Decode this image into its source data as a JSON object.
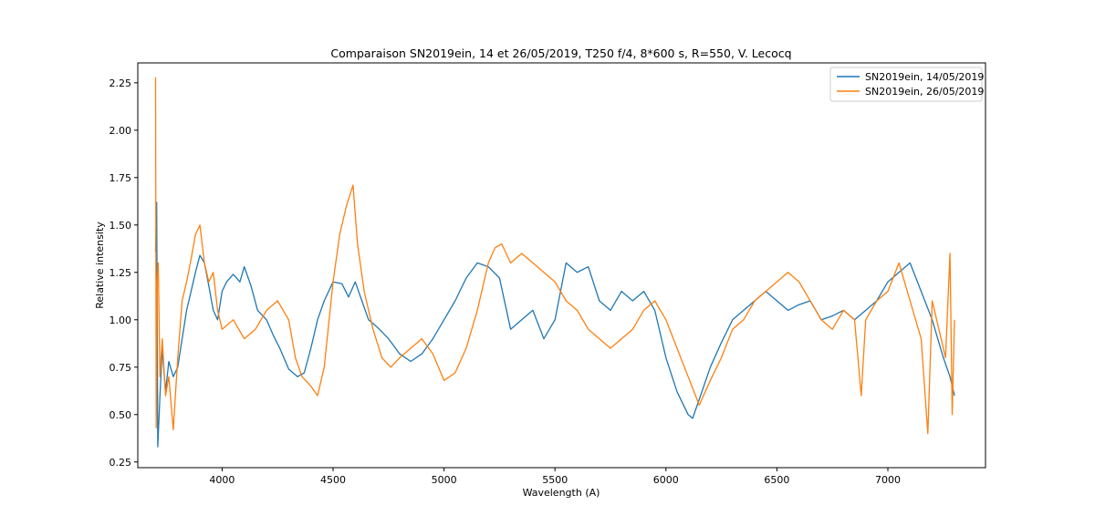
{
  "chart_data": {
    "type": "line",
    "title": "Comparaison SN2019ein, 14 et 26/05/2019, T250 f/4, 8*600 s, R=550, V. Lecocq",
    "xlabel": "Wavelength (A)",
    "ylabel": "Relative intensity",
    "xlim": [
      3620,
      7440
    ],
    "ylim": [
      0.22,
      2.355
    ],
    "xticks": [
      4000,
      4500,
      5000,
      5500,
      6000,
      6500,
      7000
    ],
    "yticks": [
      0.25,
      0.5,
      0.75,
      1.0,
      1.25,
      1.5,
      1.75,
      2.0,
      2.25
    ],
    "xtick_labels": [
      "4000",
      "4500",
      "5000",
      "5500",
      "6000",
      "6500",
      "7000"
    ],
    "ytick_labels": [
      "0.25",
      "0.50",
      "0.75",
      "1.00",
      "1.25",
      "1.50",
      "1.75",
      "2.00",
      "2.25"
    ],
    "grid": false,
    "legend_position": "upper right",
    "series": [
      {
        "name": "SN2019ein, 14/05/2019",
        "color": "#1f77b4",
        "x": [
          3700,
          3705,
          3710,
          3720,
          3730,
          3745,
          3760,
          3780,
          3800,
          3820,
          3840,
          3860,
          3880,
          3900,
          3920,
          3940,
          3960,
          3980,
          4000,
          4020,
          4050,
          4080,
          4100,
          4130,
          4160,
          4200,
          4230,
          4260,
          4300,
          4340,
          4370,
          4400,
          4430,
          4460,
          4500,
          4540,
          4570,
          4600,
          4630,
          4660,
          4700,
          4750,
          4800,
          4850,
          4900,
          4950,
          5000,
          5050,
          5100,
          5150,
          5200,
          5250,
          5300,
          5350,
          5400,
          5450,
          5500,
          5550,
          5600,
          5650,
          5700,
          5750,
          5800,
          5850,
          5900,
          5950,
          6000,
          6050,
          6100,
          6120,
          6150,
          6200,
          6250,
          6300,
          6350,
          6400,
          6450,
          6500,
          6550,
          6600,
          6650,
          6700,
          6750,
          6800,
          6850,
          6900,
          6950,
          7000,
          7050,
          7100,
          7150,
          7200,
          7250,
          7280,
          7300
        ],
        "y": [
          1.36,
          1.62,
          0.33,
          0.6,
          0.85,
          0.62,
          0.78,
          0.7,
          0.75,
          0.9,
          1.05,
          1.15,
          1.25,
          1.34,
          1.3,
          1.18,
          1.05,
          1.0,
          1.15,
          1.2,
          1.24,
          1.2,
          1.28,
          1.18,
          1.05,
          1.0,
          0.92,
          0.85,
          0.74,
          0.7,
          0.72,
          0.85,
          1.0,
          1.1,
          1.2,
          1.19,
          1.12,
          1.2,
          1.1,
          1.0,
          0.96,
          0.9,
          0.82,
          0.78,
          0.82,
          0.9,
          1.0,
          1.1,
          1.22,
          1.3,
          1.28,
          1.22,
          0.95,
          1.0,
          1.05,
          0.9,
          1.0,
          1.3,
          1.25,
          1.28,
          1.1,
          1.05,
          1.15,
          1.1,
          1.15,
          1.05,
          0.8,
          0.62,
          0.5,
          0.48,
          0.58,
          0.75,
          0.88,
          1.0,
          1.05,
          1.1,
          1.15,
          1.1,
          1.05,
          1.08,
          1.1,
          1.0,
          1.02,
          1.05,
          1.0,
          1.05,
          1.1,
          1.2,
          1.25,
          1.3,
          1.15,
          1.0,
          0.8,
          0.7,
          0.6
        ]
      },
      {
        "name": "SN2019ein, 26/05/2019",
        "color": "#ff7f0e",
        "x": [
          3700,
          3703,
          3707,
          3712,
          3720,
          3730,
          3745,
          3760,
          3780,
          3800,
          3820,
          3840,
          3860,
          3880,
          3900,
          3920,
          3940,
          3960,
          3980,
          4000,
          4050,
          4100,
          4150,
          4200,
          4250,
          4300,
          4330,
          4360,
          4400,
          4430,
          4460,
          4500,
          4530,
          4560,
          4590,
          4610,
          4640,
          4680,
          4720,
          4760,
          4800,
          4850,
          4900,
          4950,
          5000,
          5050,
          5100,
          5150,
          5200,
          5230,
          5260,
          5300,
          5350,
          5400,
          5450,
          5500,
          5550,
          5600,
          5650,
          5700,
          5750,
          5800,
          5850,
          5900,
          5950,
          6000,
          6050,
          6100,
          6150,
          6200,
          6250,
          6300,
          6350,
          6400,
          6450,
          6500,
          6550,
          6600,
          6650,
          6700,
          6750,
          6800,
          6850,
          6880,
          6900,
          6950,
          7000,
          7050,
          7100,
          7150,
          7180,
          7200,
          7230,
          7260,
          7280,
          7290,
          7300
        ],
        "y": [
          2.28,
          0.43,
          1.2,
          1.3,
          0.7,
          0.9,
          0.6,
          0.7,
          0.42,
          0.8,
          1.1,
          1.2,
          1.32,
          1.45,
          1.5,
          1.3,
          1.2,
          1.25,
          1.05,
          0.95,
          1.0,
          0.9,
          0.95,
          1.05,
          1.1,
          1.0,
          0.8,
          0.7,
          0.65,
          0.6,
          0.75,
          1.2,
          1.45,
          1.6,
          1.71,
          1.4,
          1.15,
          0.95,
          0.8,
          0.75,
          0.8,
          0.85,
          0.9,
          0.82,
          0.68,
          0.72,
          0.85,
          1.05,
          1.3,
          1.38,
          1.4,
          1.3,
          1.35,
          1.3,
          1.25,
          1.2,
          1.1,
          1.05,
          0.95,
          0.9,
          0.85,
          0.9,
          0.95,
          1.05,
          1.1,
          1.0,
          0.85,
          0.7,
          0.55,
          0.68,
          0.8,
          0.95,
          1.0,
          1.1,
          1.15,
          1.2,
          1.25,
          1.2,
          1.1,
          1.0,
          0.95,
          1.05,
          1.0,
          0.6,
          1.0,
          1.1,
          1.15,
          1.3,
          1.1,
          0.9,
          0.4,
          1.1,
          0.95,
          0.8,
          1.35,
          0.5,
          1.0
        ]
      }
    ]
  }
}
